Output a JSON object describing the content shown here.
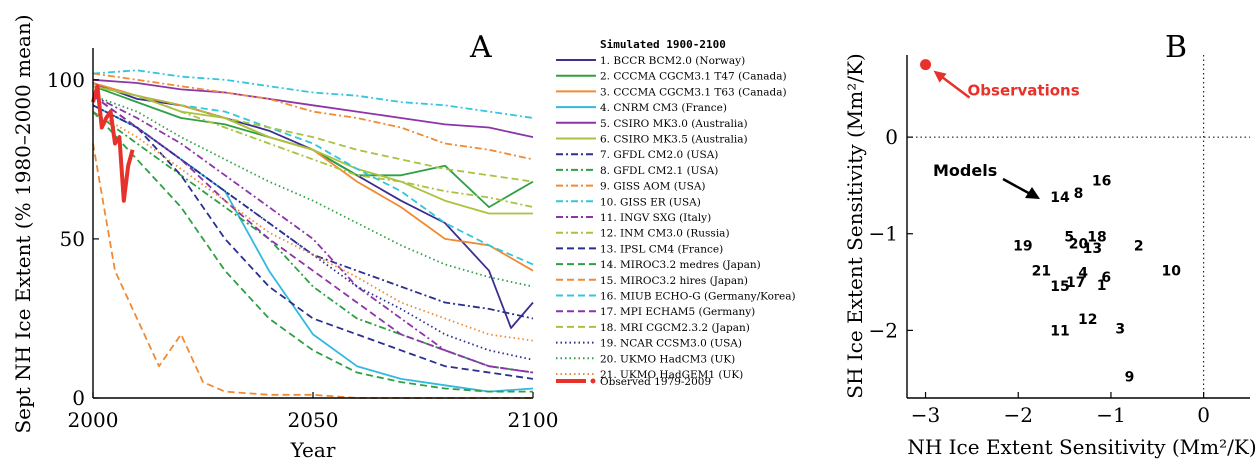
{
  "chart_data": [
    {
      "panel_label": "A",
      "type": "line",
      "xlabel": "Year",
      "ylabel": "Sept NH Ice Extent (% 1980–2000 mean)",
      "xlim": [
        2000,
        2100
      ],
      "ylim": [
        0,
        110
      ],
      "xticks": [
        2000,
        2050,
        2100
      ],
      "yticks": [
        0,
        50,
        100
      ],
      "legend_title": "Simulated 1900-2100",
      "legend_position": "right",
      "observed": {
        "name": "Observed 1979-2009",
        "color": "#e8312a",
        "x": [
          2000,
          2001,
          2002,
          2003,
          2004,
          2005,
          2006,
          2007,
          2008,
          2009
        ],
        "y": [
          93,
          98,
          85,
          88,
          90,
          80,
          82,
          62,
          73,
          78
        ]
      },
      "series": [
        {
          "name": "1. BCCR BCM2.0 (Norway)",
          "color": "#3b2f8f",
          "dash": "solid",
          "x": [
            2000,
            2010,
            2020,
            2030,
            2040,
            2050,
            2060,
            2070,
            2080,
            2090,
            2095,
            2100
          ],
          "y": [
            99,
            94,
            92,
            88,
            84,
            78,
            70,
            62,
            55,
            40,
            22,
            30
          ]
        },
        {
          "name": "2. CCCMA CGCM3.1 T47 (Canada)",
          "color": "#2ea043",
          "dash": "solid",
          "x": [
            2000,
            2010,
            2020,
            2030,
            2040,
            2050,
            2060,
            2070,
            2080,
            2090,
            2100
          ],
          "y": [
            98,
            93,
            88,
            86,
            82,
            78,
            70,
            70,
            73,
            60,
            68
          ]
        },
        {
          "name": "3. CCCMA CGCM3.1 T63 (Canada)",
          "color": "#f08a33",
          "dash": "solid",
          "x": [
            2000,
            2010,
            2020,
            2030,
            2040,
            2050,
            2060,
            2070,
            2080,
            2090,
            2100
          ],
          "y": [
            99,
            95,
            92,
            88,
            82,
            78,
            68,
            60,
            50,
            48,
            40
          ]
        },
        {
          "name": "4. CNRM CM3 (France)",
          "color": "#33b8de",
          "dash": "solid",
          "x": [
            2000,
            2010,
            2020,
            2030,
            2040,
            2050,
            2060,
            2070,
            2080,
            2090,
            2100
          ],
          "y": [
            92,
            85,
            75,
            65,
            40,
            20,
            10,
            6,
            4,
            2,
            3
          ]
        },
        {
          "name": "5. CSIRO MK3.0 (Australia)",
          "color": "#8c35a8",
          "dash": "solid",
          "x": [
            2000,
            2010,
            2020,
            2030,
            2040,
            2050,
            2060,
            2070,
            2080,
            2090,
            2100
          ],
          "y": [
            100,
            99,
            97,
            96,
            94,
            92,
            90,
            88,
            86,
            85,
            82
          ]
        },
        {
          "name": "6. CSIRO MK3.5 (Australia)",
          "color": "#a9c23f",
          "dash": "solid",
          "x": [
            2000,
            2010,
            2020,
            2030,
            2040,
            2050,
            2060,
            2070,
            2080,
            2090,
            2100
          ],
          "y": [
            98,
            95,
            90,
            88,
            82,
            78,
            72,
            68,
            62,
            58,
            58
          ]
        },
        {
          "name": "7. GFDL CM2.0 (USA)",
          "color": "#2b2f8f",
          "dash": "dashdot",
          "x": [
            2000,
            2010,
            2020,
            2030,
            2040,
            2050,
            2060,
            2070,
            2080,
            2090,
            2100
          ],
          "y": [
            92,
            85,
            75,
            65,
            55,
            45,
            40,
            35,
            30,
            28,
            25
          ]
        },
        {
          "name": "8. GFDL CM2.1 (USA)",
          "color": "#2ea043",
          "dash": "dashdot",
          "x": [
            2000,
            2010,
            2020,
            2030,
            2040,
            2050,
            2060,
            2070,
            2080,
            2090,
            2100
          ],
          "y": [
            90,
            80,
            70,
            60,
            50,
            35,
            25,
            20,
            15,
            10,
            8
          ]
        },
        {
          "name": "9. GISS AOM (USA)",
          "color": "#f08a33",
          "dash": "dashdot",
          "x": [
            2000,
            2010,
            2020,
            2030,
            2040,
            2050,
            2060,
            2070,
            2080,
            2090,
            2100
          ],
          "y": [
            102,
            100,
            98,
            96,
            94,
            90,
            88,
            85,
            80,
            78,
            75
          ]
        },
        {
          "name": "10. GISS ER (USA)",
          "color": "#33c6de",
          "dash": "dashdot",
          "x": [
            2000,
            2010,
            2020,
            2030,
            2040,
            2050,
            2060,
            2070,
            2080,
            2090,
            2100
          ],
          "y": [
            102,
            103,
            101,
            100,
            98,
            96,
            95,
            93,
            92,
            90,
            88
          ]
        },
        {
          "name": "11. INGV SXG (Italy)",
          "color": "#8c35a8",
          "dash": "dashdot",
          "x": [
            2000,
            2010,
            2020,
            2030,
            2040,
            2050,
            2060,
            2070,
            2080,
            2090,
            2100
          ],
          "y": [
            95,
            88,
            80,
            70,
            60,
            50,
            35,
            25,
            15,
            10,
            8
          ]
        },
        {
          "name": "12. INM CM3.0 (Russia)",
          "color": "#a9c23f",
          "dash": "dashdot",
          "x": [
            2000,
            2010,
            2020,
            2030,
            2040,
            2050,
            2060,
            2070,
            2080,
            2090,
            2100
          ],
          "y": [
            98,
            95,
            90,
            85,
            80,
            75,
            70,
            68,
            65,
            63,
            60
          ]
        },
        {
          "name": "13. IPSL CM4 (France)",
          "color": "#2b2f8f",
          "dash": "dashed",
          "x": [
            2000,
            2010,
            2020,
            2030,
            2040,
            2050,
            2060,
            2070,
            2080,
            2090,
            2100
          ],
          "y": [
            95,
            85,
            70,
            50,
            35,
            25,
            20,
            15,
            10,
            8,
            6
          ]
        },
        {
          "name": "14. MIROC3.2 medres (Japan)",
          "color": "#2ea043",
          "dash": "dashed",
          "x": [
            2000,
            2010,
            2020,
            2030,
            2040,
            2050,
            2060,
            2070,
            2080,
            2090,
            2100
          ],
          "y": [
            90,
            75,
            60,
            40,
            25,
            15,
            8,
            5,
            3,
            2,
            2
          ]
        },
        {
          "name": "15. MIROC3.2 hires (Japan)",
          "color": "#f08a33",
          "dash": "dashed",
          "x": [
            2000,
            2005,
            2010,
            2015,
            2020,
            2025,
            2030,
            2040,
            2050,
            2060,
            2070,
            2080,
            2090,
            2100
          ],
          "y": [
            80,
            40,
            25,
            10,
            20,
            5,
            2,
            1,
            1,
            0,
            0,
            0,
            0,
            0
          ]
        },
        {
          "name": "16. MIUB ECHO-G (Germany/Korea)",
          "color": "#33c6de",
          "dash": "dashed",
          "x": [
            2000,
            2010,
            2020,
            2030,
            2040,
            2050,
            2060,
            2070,
            2080,
            2090,
            2100
          ],
          "y": [
            98,
            95,
            92,
            90,
            85,
            80,
            72,
            65,
            55,
            48,
            42
          ]
        },
        {
          "name": "17. MPI ECHAM5 (Germany)",
          "color": "#8c35a8",
          "dash": "dashed",
          "x": [
            2000,
            2010,
            2020,
            2030,
            2040,
            2050,
            2060,
            2070,
            2080,
            2090,
            2100
          ],
          "y": [
            95,
            85,
            75,
            62,
            50,
            40,
            30,
            20,
            15,
            10,
            8
          ]
        },
        {
          "name": "18. MRI CGCM2.3.2 (Japan)",
          "color": "#a9c23f",
          "dash": "dashed",
          "x": [
            2000,
            2010,
            2020,
            2030,
            2040,
            2050,
            2060,
            2070,
            2080,
            2090,
            2100
          ],
          "y": [
            98,
            95,
            92,
            88,
            85,
            82,
            78,
            75,
            72,
            70,
            68
          ]
        },
        {
          "name": "19. NCAR CCSM3.0 (USA)",
          "color": "#2b2f8f",
          "dash": "dotted",
          "x": [
            2000,
            2010,
            2020,
            2030,
            2040,
            2050,
            2060,
            2070,
            2080,
            2090,
            2100
          ],
          "y": [
            92,
            85,
            75,
            65,
            55,
            45,
            35,
            28,
            20,
            15,
            12
          ]
        },
        {
          "name": "20. UKMO HadCM3 (UK)",
          "color": "#2ea043",
          "dash": "dotted",
          "x": [
            2000,
            2010,
            2020,
            2030,
            2040,
            2050,
            2060,
            2070,
            2080,
            2090,
            2100
          ],
          "y": [
            95,
            90,
            82,
            75,
            68,
            62,
            55,
            48,
            42,
            38,
            35
          ]
        },
        {
          "name": "21. UKMO HadGEM1 (UK)",
          "color": "#f08a33",
          "dash": "dotted",
          "x": [
            2000,
            2010,
            2020,
            2030,
            2040,
            2050,
            2060,
            2070,
            2080,
            2090,
            2100
          ],
          "y": [
            90,
            82,
            72,
            62,
            52,
            45,
            38,
            30,
            25,
            20,
            18
          ]
        }
      ]
    },
    {
      "panel_label": "B",
      "type": "scatter",
      "xlabel": "NH Ice Extent Sensitivity (Mm²/K)",
      "ylabel": "SH Ice Extent Sensitivity (Mm²/K)",
      "xlim": [
        -3.2,
        0.5
      ],
      "ylim": [
        -2.7,
        0.85
      ],
      "xticks": [
        -3,
        -2,
        -1,
        0
      ],
      "yticks": [
        -2,
        -1,
        0
      ],
      "observation": {
        "label": "Observations",
        "color": "#e8312a",
        "x": -3.0,
        "y": 0.75
      },
      "models_label": "Models",
      "points": [
        {
          "label": "1",
          "x": -1.1,
          "y": -1.53
        },
        {
          "label": "2",
          "x": -0.7,
          "y": -1.12
        },
        {
          "label": "3",
          "x": -0.9,
          "y": -1.98
        },
        {
          "label": "4",
          "x": -1.3,
          "y": -1.4
        },
        {
          "label": "5",
          "x": -1.45,
          "y": -1.03
        },
        {
          "label": "6",
          "x": -1.05,
          "y": -1.45
        },
        {
          "label": "8",
          "x": -1.35,
          "y": -0.58
        },
        {
          "label": "9",
          "x": -0.8,
          "y": -2.48
        },
        {
          "label": "10",
          "x": -0.35,
          "y": -1.38
        },
        {
          "label": "11",
          "x": -1.55,
          "y": -2.0
        },
        {
          "label": "12",
          "x": -1.25,
          "y": -1.88
        },
        {
          "label": "13",
          "x": -1.2,
          "y": -1.15
        },
        {
          "label": "14",
          "x": -1.55,
          "y": -0.62
        },
        {
          "label": "15",
          "x": -1.55,
          "y": -1.54
        },
        {
          "label": "16",
          "x": -1.1,
          "y": -0.45
        },
        {
          "label": "17",
          "x": -1.38,
          "y": -1.5
        },
        {
          "label": "18",
          "x": -1.15,
          "y": -1.03
        },
        {
          "label": "19",
          "x": -1.95,
          "y": -1.12
        },
        {
          "label": "20",
          "x": -1.35,
          "y": -1.1
        },
        {
          "label": "21",
          "x": -1.75,
          "y": -1.38
        }
      ]
    }
  ]
}
